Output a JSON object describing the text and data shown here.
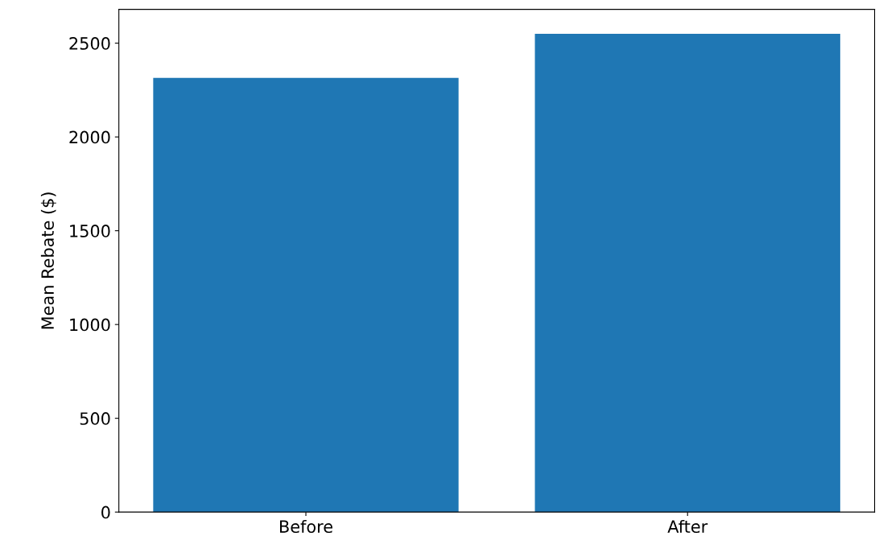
{
  "chart_data": {
    "type": "bar",
    "ylabel": "Mean Rebate ($)",
    "categories": [
      "Before",
      "After"
    ],
    "values": [
      2315,
      2550
    ],
    "color": "#1f77b4",
    "ylim": [
      0,
      2680
    ],
    "yticks": [
      0,
      500,
      1000,
      1500,
      2000,
      2500
    ],
    "grid": false
  }
}
